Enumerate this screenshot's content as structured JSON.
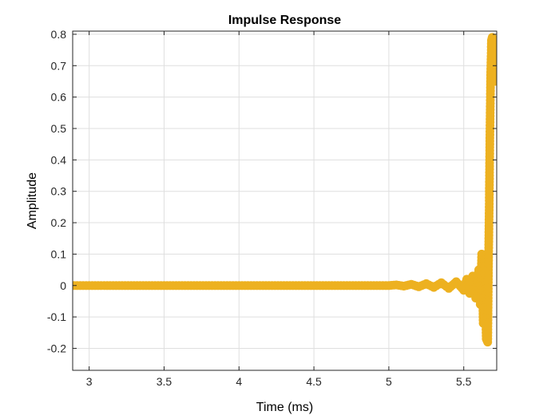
{
  "chart_data": {
    "type": "scatter",
    "title": "Impulse Response",
    "xlabel": "Time (ms)",
    "ylabel": "Amplitude",
    "xlim": [
      2.89,
      5.72
    ],
    "ylim": [
      -0.27,
      0.81
    ],
    "xticks": [
      3,
      3.5,
      4,
      4.5,
      5,
      5.5
    ],
    "yticks": [
      -0.2,
      -0.1,
      0,
      0.1,
      0.2,
      0.3,
      0.4,
      0.5,
      0.6,
      0.7,
      0.8
    ],
    "xtick_labels": [
      "3",
      "3.5",
      "4",
      "4.5",
      "5",
      "5.5"
    ],
    "ytick_labels": [
      "-0.2",
      "-0.1",
      "0",
      "0.1",
      "0.2",
      "0.3",
      "0.4",
      "0.5",
      "0.6",
      "0.7",
      "0.8"
    ],
    "grid": true,
    "marker_color": "#EDB120",
    "series": [
      {
        "x": [
          2.9,
          3.0,
          3.1,
          3.2,
          3.3,
          3.4,
          3.5,
          3.6,
          3.7,
          3.8,
          3.9,
          4.0,
          4.1,
          4.2,
          4.3,
          4.4,
          4.5,
          4.6,
          4.7,
          4.8,
          4.9,
          5.0,
          5.05,
          5.1,
          5.15,
          5.2,
          5.25,
          5.3,
          5.35,
          5.4,
          5.45,
          5.5,
          5.52,
          5.54,
          5.56,
          5.58,
          5.6,
          5.61,
          5.62,
          5.63,
          5.64,
          5.65,
          5.66,
          5.665,
          5.67,
          5.675,
          5.68,
          5.685,
          5.69,
          5.695,
          5.7,
          5.705,
          5.71
        ],
        "y": [
          0.0,
          0.0,
          0.0,
          0.0,
          0.0,
          0.0,
          0.0,
          0.0,
          0.0,
          0.0,
          0.0,
          0.0,
          0.0,
          0.0,
          0.0,
          0.0,
          0.0,
          0.0,
          0.0,
          0.0,
          0.0,
          0.0,
          0.002,
          -0.002,
          0.004,
          -0.004,
          0.006,
          -0.006,
          0.009,
          -0.009,
          0.012,
          -0.015,
          0.02,
          -0.025,
          0.03,
          -0.04,
          0.05,
          -0.06,
          0.1,
          -0.12,
          0.09,
          -0.17,
          -0.18,
          0.06,
          0.25,
          0.5,
          0.68,
          0.78,
          0.79,
          0.76,
          0.72,
          0.68,
          0.65
        ]
      }
    ]
  }
}
